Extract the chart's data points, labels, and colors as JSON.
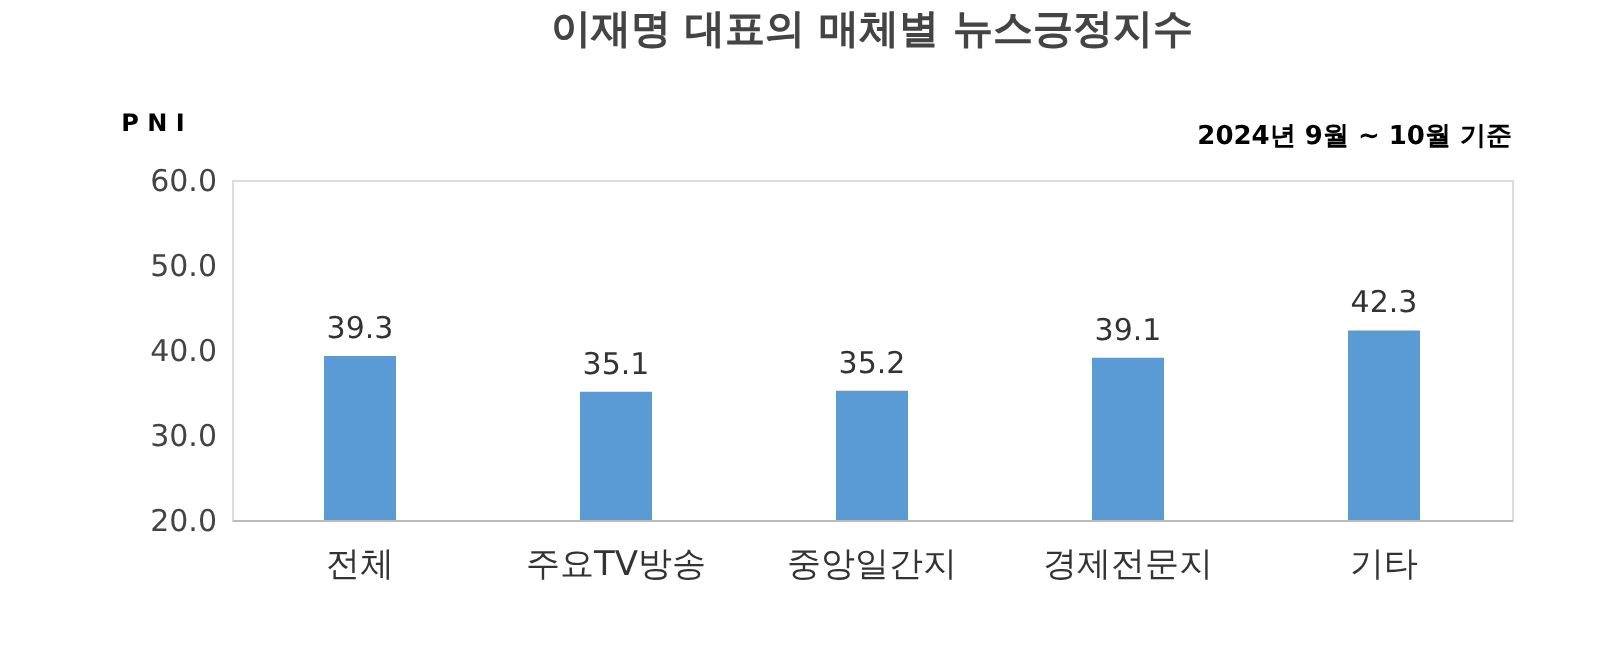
{
  "chart_data": {
    "type": "bar",
    "title": "이재명 대표의 매체별 뉴스긍정지수",
    "ylabel": "P N I",
    "annotations": [
      "2024년 9월 ~ 10월 기준"
    ],
    "categories": [
      "전체",
      "주요TV방송",
      "중앙일간지",
      "경제전문지",
      "기타"
    ],
    "values": [
      39.3,
      35.1,
      35.2,
      39.1,
      42.3
    ],
    "color": "#5b9bd5",
    "ylim": [
      20,
      60
    ],
    "yticks": [
      {
        "value": 20,
        "label": "20.0"
      },
      {
        "value": 30,
        "label": "30.0"
      },
      {
        "value": 40,
        "label": "40.0"
      },
      {
        "value": 50,
        "label": "50.0"
      },
      {
        "value": 60,
        "label": "60.0"
      }
    ],
    "data_labels": true,
    "grid": false
  }
}
